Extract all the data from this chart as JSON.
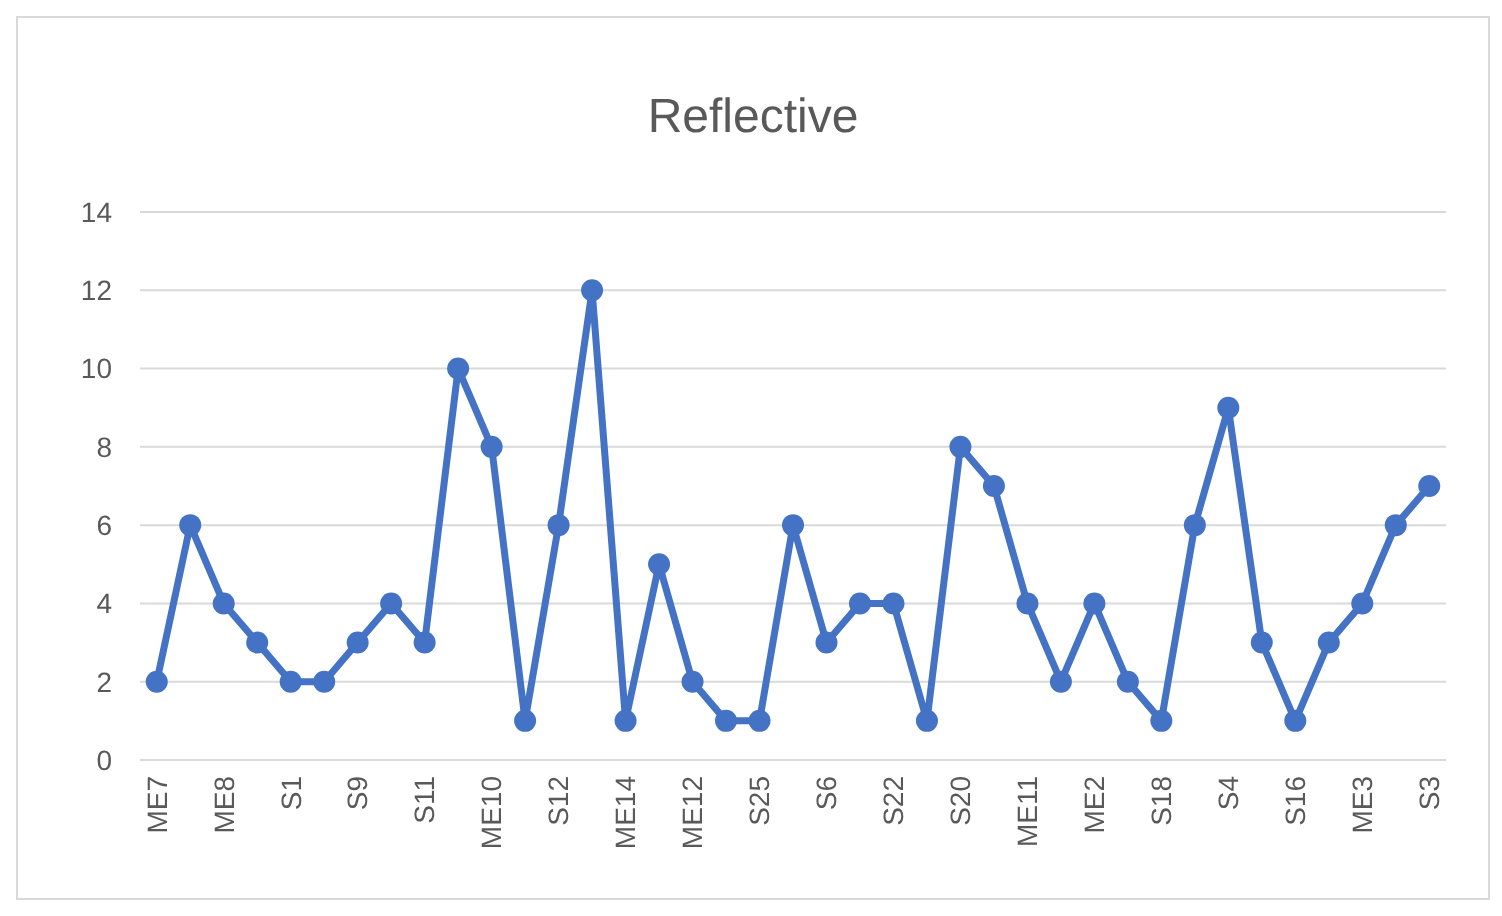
{
  "chart_data": {
    "type": "line",
    "title": "Reflective",
    "categories": [
      "ME7",
      null,
      "ME8",
      null,
      "S1",
      null,
      "S9",
      null,
      "S11",
      null,
      "ME10",
      null,
      "S12",
      null,
      "ME14",
      null,
      "ME12",
      null,
      "S25",
      null,
      "S6",
      null,
      "S22",
      null,
      "S20",
      null,
      "ME11",
      null,
      "ME2",
      null,
      "S18",
      null,
      "S4",
      null,
      "S16",
      null,
      "ME3",
      null,
      "S3"
    ],
    "series": [
      {
        "color": "#4472c4",
        "values": [
          2,
          6,
          4,
          3,
          2,
          2,
          3,
          4,
          3,
          10,
          8,
          1,
          6,
          12,
          1,
          5,
          2,
          1,
          1,
          6,
          3,
          4,
          4,
          1,
          8,
          7,
          4,
          2,
          4,
          2,
          1,
          6,
          9,
          3,
          1,
          3,
          4,
          6,
          7
        ]
      }
    ],
    "ylim": [
      0,
      14
    ],
    "yticks": [
      0,
      2,
      4,
      6,
      8,
      10,
      12,
      14
    ],
    "grid": "y",
    "marker": "circle",
    "line_style": "solid"
  }
}
